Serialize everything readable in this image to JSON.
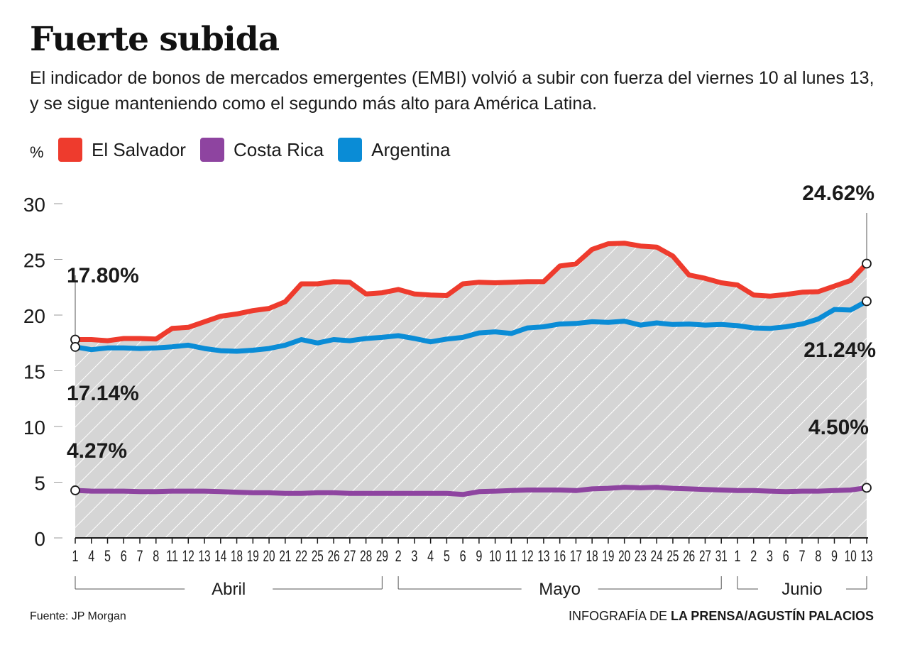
{
  "header": {
    "title": "Fuerte subida",
    "subtitle": "El indicador de bonos de mercados emergentes (EMBI) volvió a subir con fuerza del viernes 10 al lunes 13, y se sigue manteniendo como el segundo más alto para América Latina.",
    "unit": "%"
  },
  "footer": {
    "source": "Fuente:  JP Morgan",
    "credit_prefix": "INFOGRAFÍA DE ",
    "credit_bold": "LA PRENSA/AGUSTÍN PALACIOS"
  },
  "chart_data": {
    "type": "line",
    "ylim": [
      0,
      30
    ],
    "yticks": [
      0,
      5,
      10,
      15,
      20,
      25,
      30
    ],
    "grid": false,
    "legend_position": "top-left",
    "x": [
      "1",
      "4",
      "5",
      "6",
      "7",
      "8",
      "11",
      "12",
      "13",
      "14",
      "18",
      "19",
      "20",
      "21",
      "22",
      "25",
      "26",
      "27",
      "28",
      "29",
      "2",
      "3",
      "4",
      "5",
      "6",
      "9",
      "10",
      "11",
      "12",
      "13",
      "16",
      "17",
      "18",
      "19",
      "20",
      "23",
      "24",
      "25",
      "26",
      "27",
      "31",
      "1",
      "2",
      "3",
      "6",
      "7",
      "8",
      "9",
      "10",
      "13"
    ],
    "months": [
      {
        "label": "Abril",
        "start": 0,
        "end": 19
      },
      {
        "label": "Mayo",
        "start": 20,
        "end": 40
      },
      {
        "label": "Junio",
        "start": 41,
        "end": 49
      }
    ],
    "series": [
      {
        "name": "El Salvador",
        "color": "#ee3b2d",
        "values": [
          17.8,
          17.8,
          17.7,
          17.9,
          17.9,
          17.85,
          18.8,
          18.9,
          19.4,
          19.9,
          20.1,
          20.4,
          20.6,
          21.2,
          22.8,
          22.8,
          23.0,
          22.95,
          21.9,
          22.0,
          22.3,
          21.9,
          21.8,
          21.75,
          22.8,
          22.95,
          22.9,
          22.95,
          23.0,
          23.0,
          24.4,
          24.6,
          25.9,
          26.4,
          26.45,
          26.2,
          26.1,
          25.3,
          23.6,
          23.3,
          22.9,
          22.7,
          21.8,
          21.7,
          21.85,
          22.05,
          22.1,
          22.6,
          23.1,
          24.62
        ],
        "start_label": "17.80%",
        "end_label": "24.62%"
      },
      {
        "name": "Costa Rica",
        "color": "#8e44a0",
        "values": [
          4.27,
          4.2,
          4.2,
          4.2,
          4.15,
          4.15,
          4.2,
          4.2,
          4.2,
          4.15,
          4.1,
          4.05,
          4.05,
          4.0,
          4.0,
          4.05,
          4.05,
          4.0,
          4.0,
          4.0,
          4.0,
          4.0,
          4.0,
          4.0,
          3.9,
          4.15,
          4.2,
          4.25,
          4.3,
          4.3,
          4.3,
          4.25,
          4.4,
          4.45,
          4.55,
          4.5,
          4.55,
          4.45,
          4.4,
          4.35,
          4.3,
          4.25,
          4.25,
          4.2,
          4.15,
          4.2,
          4.2,
          4.25,
          4.3,
          4.5
        ],
        "start_label": "4.27%",
        "end_label": "4.50%"
      },
      {
        "name": "Argentina",
        "color": "#0a8cd6",
        "values": [
          17.14,
          16.9,
          17.05,
          17.05,
          17.0,
          17.05,
          17.15,
          17.3,
          17.0,
          16.8,
          16.75,
          16.85,
          17.0,
          17.3,
          17.8,
          17.5,
          17.8,
          17.7,
          17.9,
          18.0,
          18.15,
          17.9,
          17.6,
          17.85,
          18.0,
          18.4,
          18.5,
          18.35,
          18.85,
          18.95,
          19.2,
          19.25,
          19.4,
          19.35,
          19.45,
          19.1,
          19.3,
          19.15,
          19.2,
          19.1,
          19.15,
          19.05,
          18.85,
          18.8,
          18.95,
          19.2,
          19.65,
          20.5,
          20.45,
          21.24
        ],
        "start_label": "17.14%",
        "end_label": "21.24%"
      }
    ]
  }
}
